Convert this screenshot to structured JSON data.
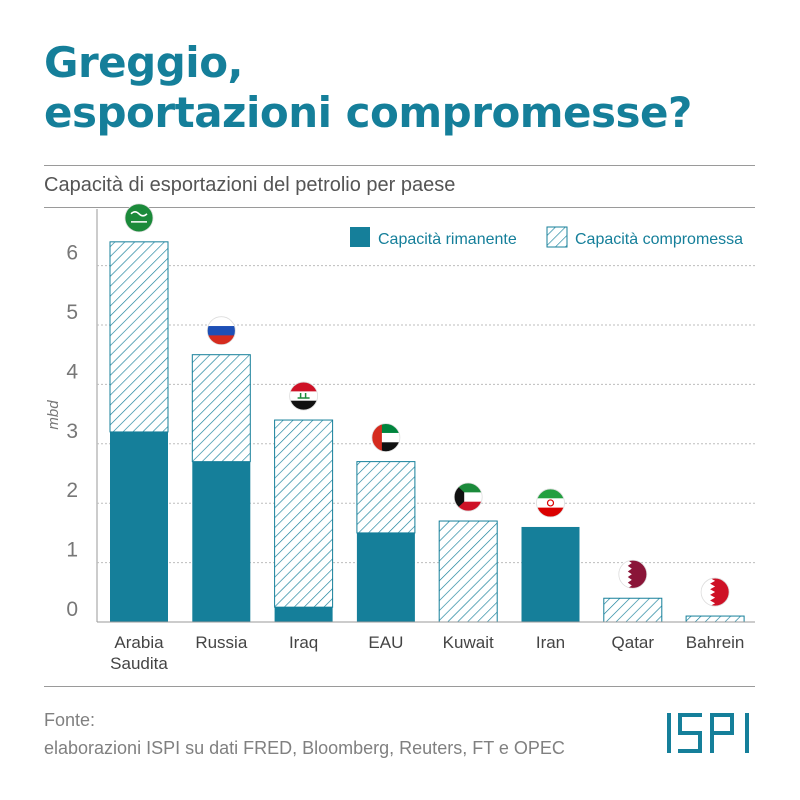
{
  "header": {
    "title_line1": "Greggio,",
    "title_line2": "esportazioni compromesse?"
  },
  "colors": {
    "accent": "#157f9a",
    "title": "#157f9a",
    "hatch": "#157f9a",
    "grid": "#bdbdbd"
  },
  "chart_data": {
    "type": "bar",
    "stacked": true,
    "title": "Capacità di esportazioni del petrolio per paese",
    "xlabel": "",
    "ylabel": "mbd",
    "ylim": [
      0,
      7
    ],
    "yticks": [
      0,
      1,
      2,
      3,
      4,
      5,
      6
    ],
    "grid": true,
    "legend_position": "top-right",
    "categories": [
      [
        "Arabia",
        "Saudita"
      ],
      [
        "Russia"
      ],
      [
        "Iraq"
      ],
      [
        "EAU"
      ],
      [
        "Kuwait"
      ],
      [
        "Iran"
      ],
      [
        "Qatar"
      ],
      [
        "Bahrein"
      ]
    ],
    "series": [
      {
        "name": "Capacità rimanente",
        "style": "solid",
        "values": [
          3.2,
          2.7,
          0.25,
          1.5,
          0,
          1.6,
          0,
          0
        ]
      },
      {
        "name": "Capacità compromessa",
        "style": "hatched",
        "values": [
          3.2,
          1.8,
          3.15,
          1.2,
          1.7,
          0,
          0.4,
          0.1
        ]
      }
    ],
    "flag_icons": [
      "saudi-arabia-flag-icon",
      "russia-flag-icon",
      "iraq-flag-icon",
      "uae-flag-icon",
      "kuwait-flag-icon",
      "iran-flag-icon",
      "qatar-flag-icon",
      "bahrain-flag-icon"
    ]
  },
  "footer": {
    "source_line1": "Fonte:",
    "source_line2": "elaborazioni ISPI su dati FRED, Bloomberg, Reuters, FT e OPEC",
    "logo_text": "ISPI"
  }
}
